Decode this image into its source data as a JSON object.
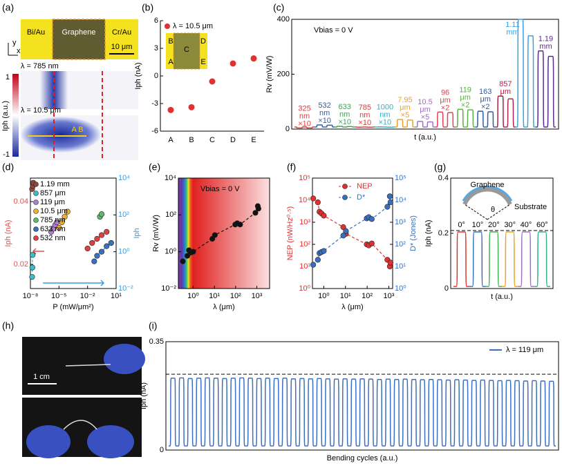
{
  "panel_a": {
    "label": "(a)",
    "electrode_left": "Bi/Au",
    "channel": "Graphene",
    "electrode_right": "Cr/Au",
    "scale_bar": "10 μm",
    "axis_y": "y",
    "axis_x": "x",
    "map_top": "λ = 785 nm",
    "map_bottom": "λ = 10.5 μm",
    "colorbar_max": "1",
    "colorbar_min": "-1",
    "colorbar_label": "Iph (a.u.)",
    "points": "A B"
  },
  "panel_h": {
    "label": "(h)",
    "scale_bar": "1 cm"
  },
  "chart_data": [
    {
      "label": "(b)",
      "type": "scatter",
      "categories": [
        "A",
        "B",
        "C",
        "D",
        "E"
      ],
      "values": [
        -3.7,
        -3.4,
        -0.6,
        1.35,
        1.9
      ],
      "color": "#e03030",
      "ylabel": "Iph (nA)",
      "ylim": [
        -6,
        6
      ],
      "yticks": [
        -6,
        -3,
        0,
        3,
        6
      ],
      "legend": "λ = 10.5 μm",
      "inset_labels": [
        "B",
        "C",
        "D",
        "A",
        "E"
      ]
    },
    {
      "label": "(c)",
      "type": "pulse",
      "xlabel": "t (a.u.)",
      "ylabel": "Rv (mV/W)",
      "ylim": [
        0,
        400
      ],
      "yticks": [
        0,
        200,
        400
      ],
      "annotation": "Vbias = 0 V",
      "series": [
        {
          "name": [
            "325",
            "nm"
          ],
          "factor": "×10",
          "color": "#e03c3c",
          "values": [
            4,
            4
          ]
        },
        {
          "name": [
            "532",
            "nm"
          ],
          "factor": "×10",
          "color": "#2c5fb0",
          "values": [
            15,
            14
          ]
        },
        {
          "name": [
            "633",
            "nm"
          ],
          "factor": "×10",
          "color": "#3aa455",
          "values": [
            10,
            9
          ]
        },
        {
          "name": [
            "785",
            "nm"
          ],
          "factor": "×10",
          "color": "#d04040",
          "values": [
            7,
            7
          ]
        },
        {
          "name": [
            "1000",
            "nm"
          ],
          "factor": "×10",
          "color": "#30b0c0",
          "values": [
            8,
            7
          ]
        },
        {
          "name": [
            "7.95",
            "μm"
          ],
          "factor": "×5",
          "color": "#f0a020",
          "values": [
            35,
            33
          ]
        },
        {
          "name": [
            "10.5",
            "μm"
          ],
          "factor": "×5",
          "color": "#a070c0",
          "values": [
            28,
            26
          ]
        },
        {
          "name": [
            "96",
            "μm"
          ],
          "factor": "×2",
          "color": "#e04050",
          "values": [
            62,
            60
          ]
        },
        {
          "name": [
            "119",
            "μm"
          ],
          "factor": "×2",
          "color": "#5ab040",
          "values": [
            72,
            70
          ]
        },
        {
          "name": [
            "163",
            "μm"
          ],
          "factor": "×2",
          "color": "#2a5ca8",
          "values": [
            65,
            63
          ]
        },
        {
          "name": [
            "857",
            "μm"
          ],
          "color": "#b0204a",
          "values": [
            120,
            110
          ]
        },
        {
          "name": [
            "1.11",
            "mm"
          ],
          "color": "#3aa0e0",
          "values": [
            400,
            340
          ]
        },
        {
          "name": [
            "1.19",
            "mm"
          ],
          "color": "#5a2a90",
          "values": [
            285,
            265
          ]
        }
      ]
    },
    {
      "label": "(d)",
      "type": "scatter",
      "xscale": "log",
      "yscale": "linear",
      "y2scale": "log",
      "xlim": [
        1e-08,
        10
      ],
      "xticks": [
        {
          "value": 1e-08,
          "label": "10⁻⁸"
        },
        {
          "value": 1e-05,
          "label": "10⁻⁵"
        },
        {
          "value": 0.01,
          "label": "10⁻²"
        },
        {
          "value": 10,
          "label": "10¹"
        }
      ],
      "ylim": [
        0.0123,
        0.0475
      ],
      "yticks": [
        0.02,
        0.04
      ],
      "y2lim": [
        0.01,
        10000
      ],
      "y2ticks": [
        {
          "value": 0.01,
          "label": "10⁻²"
        },
        {
          "value": 1,
          "label": "10⁰"
        },
        {
          "value": 100,
          "label": "10²"
        },
        {
          "value": 10000,
          "label": "10⁴"
        }
      ],
      "ycolor": "#e05050",
      "y2color": "#3a9bd8",
      "xlabel": "P (mW/μm²)",
      "ylabel": "Iph (nA)",
      "y2label": "Iph",
      "series": [
        {
          "name": "1.19 mm",
          "color": "#8b4a3a",
          "x": [
            1.5e-08,
            1.8e-08,
            2e-08
          ],
          "values": [
            0.044,
            0.045,
            0.046
          ]
        },
        {
          "name": "857 μm",
          "color": "#3bbccc",
          "x": [
            1.5e-08,
            1.6e-08,
            1.7e-08
          ],
          "values": [
            0.016,
            0.019,
            0.023
          ]
        },
        {
          "name": "119 μm",
          "color": "#b07fd0",
          "axis": "y2",
          "x": [
            1.5e-06,
            2.5e-06,
            4e-06,
            6e-06
          ],
          "values": [
            12,
            18,
            28,
            40
          ]
        },
        {
          "name": "10.5 μm",
          "color": "#f0b030",
          "axis": "y2",
          "x": [
            1e-05,
            2e-05,
            4e-05,
            8e-05
          ],
          "values": [
            20,
            40,
            80,
            150
          ]
        },
        {
          "name": "785 nm",
          "color": "#5cba6a",
          "axis": "y2",
          "x": [
            0.2,
            0.3
          ],
          "values": [
            80,
            110
          ]
        },
        {
          "name": "633 nm",
          "color": "#3a6fc0",
          "axis": "y2",
          "x": [
            0.05,
            0.1,
            0.3,
            1,
            3
          ],
          "values": [
            0.3,
            0.6,
            1,
            2,
            3
          ]
        },
        {
          "name": "532 nm",
          "color": "#e04040",
          "axis": "y2",
          "x": [
            0.01,
            0.03,
            0.1,
            0.3,
            1
          ],
          "values": [
            1.5,
            3,
            5,
            8,
            12
          ]
        }
      ]
    },
    {
      "label": "(e)",
      "type": "scatter",
      "xscale": "log",
      "yscale": "log",
      "xlim": [
        0.2,
        4000
      ],
      "xticks": [
        {
          "value": 1,
          "label": "10⁰"
        },
        {
          "value": 10,
          "label": "10¹"
        },
        {
          "value": 100,
          "label": "10²"
        },
        {
          "value": 1000,
          "label": "10³"
        }
      ],
      "ylim": [
        0.01,
        10000
      ],
      "yticks": [
        {
          "value": 0.01,
          "label": "10⁻²"
        },
        {
          "value": 1,
          "label": "10⁰"
        },
        {
          "value": 100,
          "label": "10²"
        },
        {
          "value": 10000,
          "label": "10⁴"
        }
      ],
      "xlabel": "λ (μm)",
      "ylabel": "Rv (mV/W)",
      "annotation": "Vbias = 0 V",
      "series": [
        {
          "color": "#111111",
          "x": [
            0.325,
            0.532,
            0.633,
            0.785,
            1,
            7.95,
            10.5,
            96,
            119,
            163,
            857,
            1110,
            1190
          ],
          "values": [
            0.3,
            0.6,
            1.2,
            0.9,
            1,
            5,
            8,
            30,
            35,
            30,
            130,
            300,
            220
          ]
        }
      ]
    },
    {
      "label": "(f)",
      "type": "scatter",
      "xscale": "log",
      "yscale": "log",
      "y2scale": "log",
      "xlim": [
        0.3,
        1500
      ],
      "xticks": [
        {
          "value": 1,
          "label": "10⁰"
        },
        {
          "value": 10,
          "label": "10¹"
        },
        {
          "value": 100,
          "label": "10²"
        },
        {
          "value": 1000,
          "label": "10³"
        }
      ],
      "ylim": [
        1,
        100000
      ],
      "yticks": [
        {
          "value": 1,
          "label": "10⁰"
        },
        {
          "value": 10,
          "label": "10¹"
        },
        {
          "value": 100,
          "label": "10²"
        },
        {
          "value": 1000,
          "label": "10³"
        },
        {
          "value": 10000,
          "label": "10⁴"
        },
        {
          "value": 100000,
          "label": "10⁵"
        }
      ],
      "y2lim": [
        1,
        100000
      ],
      "y2ticks": [
        {
          "value": 1,
          "label": "10⁰"
        },
        {
          "value": 10,
          "label": "10¹"
        },
        {
          "value": 100,
          "label": "10²"
        },
        {
          "value": 1000,
          "label": "10³"
        },
        {
          "value": 10000,
          "label": "10⁴"
        },
        {
          "value": 100000,
          "label": "10⁵"
        }
      ],
      "ycolor": "#e03030",
      "y2color": "#3a6fc0",
      "xlabel": "λ (μm)",
      "ylabel": "NEP (nW/Hz⁰·⁵)",
      "y2label": "D* (Jones)",
      "series": [
        {
          "name": "NEP",
          "color": "#e03030",
          "x": [
            0.325,
            0.532,
            0.633,
            0.785,
            1,
            7.95,
            10.5,
            96,
            119,
            163,
            857,
            1110,
            1190
          ],
          "values": [
            12000,
            8000,
            3000,
            2500,
            2000,
            600,
            300,
            100,
            90,
            110,
            20,
            10,
            15
          ]
        },
        {
          "name": "D*",
          "color": "#3a6fc0",
          "axis": "y2",
          "x": [
            0.325,
            0.532,
            0.633,
            0.785,
            1,
            7.95,
            10.5,
            96,
            119,
            163,
            857,
            1110,
            1190
          ],
          "values": [
            12,
            20,
            40,
            45,
            50,
            250,
            400,
            1500,
            1700,
            1400,
            5000,
            15000,
            8000
          ]
        }
      ]
    },
    {
      "label": "(g)",
      "type": "pulse",
      "xlabel": "t (a.u.)",
      "ylabel": "Iph (nA)",
      "ylim": [
        0,
        0.4
      ],
      "yticks": [
        0,
        0.2,
        0.4
      ],
      "ref": 0.21,
      "inset_labels": [
        "Graphene",
        "Substrate",
        "θ"
      ],
      "series": [
        {
          "name": "0°",
          "color": "#e03030",
          "values": [
            0.205
          ]
        },
        {
          "name": "10°",
          "color": "#3a6fc0",
          "values": [
            0.205
          ]
        },
        {
          "name": "20°",
          "color": "#40b050",
          "values": [
            0.205
          ]
        },
        {
          "name": "30°",
          "color": "#f0a020",
          "values": [
            0.205
          ]
        },
        {
          "name": "40°",
          "color": "#a070c0",
          "values": [
            0.205
          ]
        },
        {
          "name": "60°",
          "color": "#30b080",
          "values": [
            0.205
          ]
        }
      ]
    },
    {
      "label": "(i)",
      "type": "pulse",
      "xlabel": "Bending cycles (a.u.)",
      "ylabel": "Iph (nA)",
      "ylim": [
        0,
        0.35
      ],
      "yticks": [
        0,
        0.35
      ],
      "ref": 0.245,
      "legend": "λ = 119 μm",
      "series": [
        {
          "color": "#3a6fc0",
          "values": [
            0.232,
            0.233,
            0.231,
            0.232,
            0.233,
            0.232,
            0.231,
            0.232,
            0.233,
            0.232,
            0.231,
            0.232,
            0.231,
            0.232,
            0.23,
            0.231,
            0.23,
            0.231,
            0.23,
            0.229,
            0.23,
            0.229,
            0.23,
            0.229,
            0.228,
            0.229,
            0.228,
            0.229,
            0.228,
            0.227,
            0.228,
            0.227,
            0.226,
            0.227,
            0.226,
            0.225,
            0.226,
            0.225,
            0.224,
            0.225,
            0.224,
            0.223,
            0.224,
            0.223,
            0.222
          ]
        }
      ]
    }
  ]
}
